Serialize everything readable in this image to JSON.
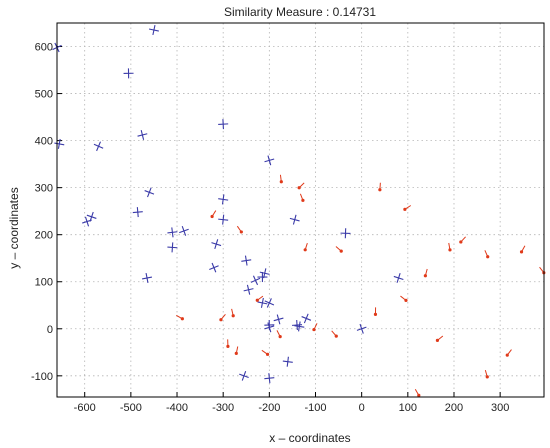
{
  "chart_data": {
    "type": "scatter",
    "title": "Similarity Measure : 0.14731",
    "xlabel": "x – coordinates",
    "ylabel": "y – coordinates",
    "xlim": [
      -660,
      395
    ],
    "ylim": [
      -145,
      650
    ],
    "xticks": [
      -600,
      -500,
      -400,
      -300,
      -200,
      -100,
      0,
      100,
      200,
      300
    ],
    "yticks": [
      -100,
      0,
      100,
      200,
      300,
      400,
      500,
      600
    ],
    "grid": true,
    "series": [
      {
        "marker": "plus",
        "color": "#3a3aa8",
        "points": [
          [
            -660,
            598
          ],
          [
            -450,
            635
          ],
          [
            -505,
            543
          ],
          [
            -475,
            412
          ],
          [
            -570,
            388
          ],
          [
            -655,
            393
          ],
          [
            -300,
            435
          ],
          [
            -200,
            358
          ],
          [
            -460,
            290
          ],
          [
            -300,
            275
          ],
          [
            -485,
            248
          ],
          [
            -595,
            228
          ],
          [
            -585,
            238
          ],
          [
            -300,
            232
          ],
          [
            -410,
            205
          ],
          [
            -385,
            208
          ],
          [
            -315,
            180
          ],
          [
            -410,
            173
          ],
          [
            -250,
            145
          ],
          [
            -320,
            130
          ],
          [
            -145,
            232
          ],
          [
            -35,
            203
          ],
          [
            -465,
            108
          ],
          [
            -230,
            103
          ],
          [
            -210,
            118
          ],
          [
            -215,
            110
          ],
          [
            -245,
            83
          ],
          [
            -200,
            55
          ],
          [
            -215,
            55
          ],
          [
            -200,
            8
          ],
          [
            -180,
            20
          ],
          [
            -120,
            22
          ],
          [
            -135,
            5
          ],
          [
            -140,
            8
          ],
          [
            -200,
            3
          ],
          [
            -255,
            -100
          ],
          [
            -160,
            -70
          ],
          [
            -200,
            -105
          ],
          [
            0,
            0
          ],
          [
            80,
            108
          ]
        ]
      },
      {
        "marker": "arrow",
        "color": "#e03a1a",
        "points": [
          [
            -395,
            25
          ],
          [
            -175,
            320
          ],
          [
            -130,
            305
          ],
          [
            -130,
            280
          ],
          [
            -320,
            245
          ],
          [
            -265,
            212
          ],
          [
            -120,
            175
          ],
          [
            -50,
            170
          ],
          [
            40,
            303
          ],
          [
            100,
            258
          ],
          [
            190,
            175
          ],
          [
            220,
            190
          ],
          [
            270,
            160
          ],
          [
            350,
            170
          ],
          [
            390,
            125
          ],
          [
            140,
            120
          ],
          [
            90,
            65
          ],
          [
            30,
            38
          ],
          [
            -220,
            65
          ],
          [
            -280,
            35
          ],
          [
            -300,
            25
          ],
          [
            -180,
            -10
          ],
          [
            -100,
            5
          ],
          [
            -60,
            -10
          ],
          [
            -270,
            -45
          ],
          [
            -210,
            -50
          ],
          [
            -290,
            -30
          ],
          [
            170,
            -20
          ],
          [
            270,
            -95
          ],
          [
            320,
            -50
          ],
          [
            120,
            -135
          ]
        ]
      }
    ]
  }
}
